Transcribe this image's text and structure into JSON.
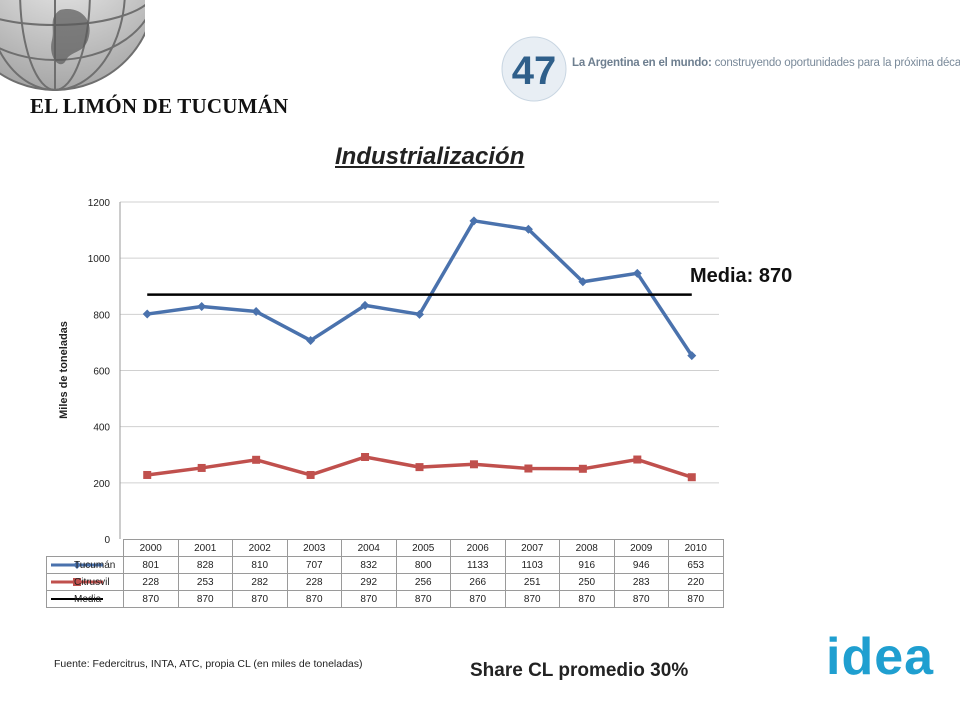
{
  "header": {
    "slide_title": "EL LIMÓN DE TUCUMÁN",
    "brand_number": "47",
    "brand_bold": "La Argentina en el mundo:",
    "brand_rest": "construyendo oportunidades para la próxima década"
  },
  "chart_data": {
    "type": "line",
    "title": "Industrialización",
    "ylabel": "Miles de toneladas",
    "xlabel": "",
    "ylim": [
      0,
      1200
    ],
    "yticks": [
      0,
      200,
      400,
      600,
      800,
      1000,
      1200
    ],
    "categories": [
      "2000",
      "2001",
      "2002",
      "2003",
      "2004",
      "2005",
      "2006",
      "2007",
      "2008",
      "2009",
      "2010"
    ],
    "grid": true,
    "legend": "data table below chart",
    "annotation": "Media: 870",
    "series": [
      {
        "name": "Tucumán",
        "color": "#4a72ad",
        "marker": "diamond",
        "values": [
          801,
          828,
          810,
          707,
          832,
          800,
          1133,
          1103,
          916,
          946,
          653
        ]
      },
      {
        "name": "Citrusvil",
        "color": "#c0504d",
        "marker": "square",
        "values": [
          228,
          253,
          282,
          228,
          292,
          256,
          266,
          251,
          250,
          283,
          220
        ]
      },
      {
        "name": "Media",
        "color": "#000000",
        "marker": "none",
        "values": [
          870,
          870,
          870,
          870,
          870,
          870,
          870,
          870,
          870,
          870,
          870
        ]
      }
    ]
  },
  "footer": {
    "source": "Fuente: Federcitrus, INTA, ATC, propia CL (en miles de toneladas)",
    "share": "Share CL promedio 30%",
    "logo_text": "idea"
  }
}
